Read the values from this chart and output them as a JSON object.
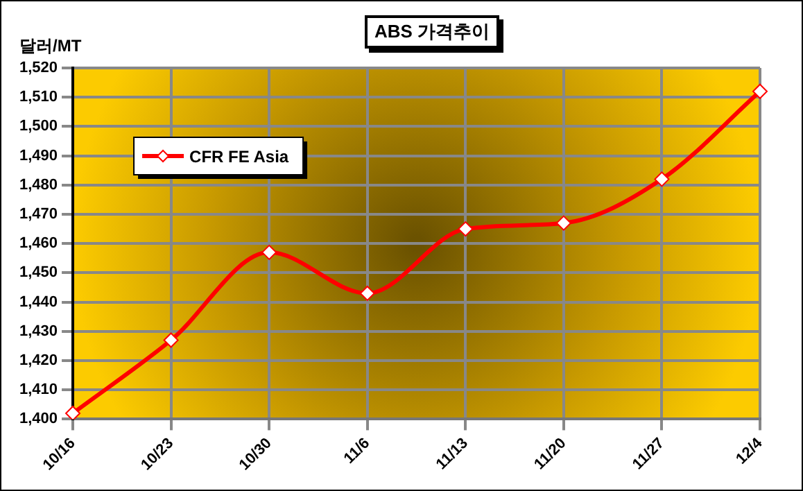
{
  "chart_data": {
    "type": "line",
    "title": "ABS 가격추이",
    "ylabel": "달러/MT",
    "categories": [
      "10/16",
      "10/23",
      "10/30",
      "11/6",
      "11/13",
      "11/20",
      "11/27",
      "12/4"
    ],
    "series": [
      {
        "name": "CFR FE Asia",
        "color": "#ff0000",
        "values": [
          1402,
          1427,
          1457,
          1443,
          1465,
          1467,
          1482,
          1512
        ]
      }
    ],
    "ylim": [
      1400,
      1520
    ],
    "yticks": [
      {
        "value": 1400,
        "label": "1,400"
      },
      {
        "value": 1410,
        "label": "1,410"
      },
      {
        "value": 1420,
        "label": "1,420"
      },
      {
        "value": 1430,
        "label": "1,430"
      },
      {
        "value": 1440,
        "label": "1,440"
      },
      {
        "value": 1450,
        "label": "1,450"
      },
      {
        "value": 1460,
        "label": "1,460"
      },
      {
        "value": 1470,
        "label": "1,470"
      },
      {
        "value": 1480,
        "label": "1,480"
      },
      {
        "value": 1490,
        "label": "1,490"
      },
      {
        "value": 1500,
        "label": "1,500"
      },
      {
        "value": 1510,
        "label": "1,510"
      },
      {
        "value": 1520,
        "label": "1,520"
      }
    ],
    "grid": true,
    "legend": "top left",
    "marker": "diamond",
    "line_style": "solid"
  }
}
